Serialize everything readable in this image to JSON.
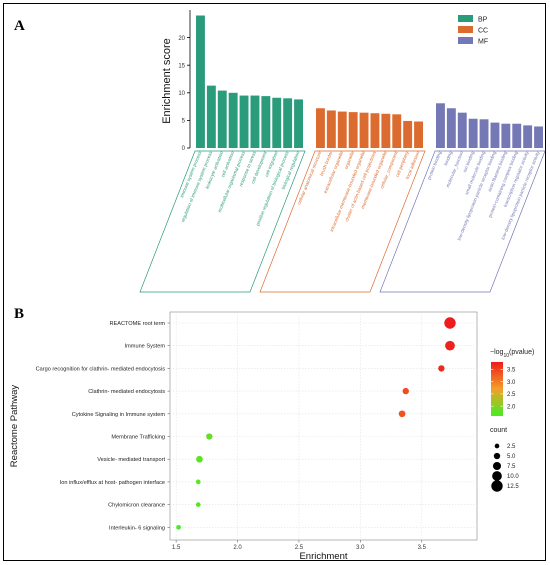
{
  "figure": {
    "panel_a_label": "A",
    "panel_b_label": "B"
  },
  "chart_data": [
    {
      "type": "bar",
      "ylabel": "Enrichment score",
      "ylim": [
        0,
        25
      ],
      "yticks": [
        0,
        5,
        10,
        15,
        20
      ],
      "legend": {
        "placement": "top-right",
        "entries": [
          {
            "name": "BP",
            "color": "#2a9b7b"
          },
          {
            "name": "CC",
            "color": "#dc6b2f"
          },
          {
            "name": "MF",
            "color": "#7479b5"
          }
        ]
      },
      "groups": [
        {
          "name": "BP",
          "color": "#2a9b7b",
          "categories": [
            "immune system process",
            "regulation of immune system process",
            "leukocyte activation",
            "cell activation",
            "multicellular organismal process",
            "response to stress",
            "cell development",
            "cell migration",
            "positive regulation of biological process",
            "biological regulation"
          ],
          "values": [
            24,
            11.3,
            10.4,
            10.0,
            9.5,
            9.5,
            9.4,
            9.1,
            9.0,
            8.8
          ]
        },
        {
          "name": "CC",
          "color": "#dc6b2f",
          "categories": [
            "cellular anatomical structure",
            "brush border",
            "extracellular organelle",
            "organelle",
            "intracellular membrane-bounded organelle",
            "cluster of actin-based cell projections",
            "membrane-bounded organelle",
            "cellular_component",
            "cell periphery",
            "focal adhesion"
          ],
          "values": [
            7.2,
            6.8,
            6.6,
            6.5,
            6.4,
            6.3,
            6.2,
            6.1,
            4.9,
            4.8
          ]
        },
        {
          "name": "MF",
          "color": "#7479b5",
          "categories": [
            "protein binding",
            "binding",
            "molecular_function",
            "ion binding",
            "small molecule binding",
            "low-density lipoprotein particle receptor binding",
            "actin filament binding",
            "protein-containing complex binding",
            "transcription regulator activity",
            "low-density lipoprotein particle receptor activity"
          ],
          "values": [
            8.1,
            7.2,
            6.4,
            5.3,
            5.2,
            4.6,
            4.4,
            4.4,
            4.1,
            3.9
          ]
        }
      ]
    },
    {
      "type": "scatter",
      "xlabel": "Enrichment",
      "ylabel": "Reactome Pathway",
      "xlim": [
        1.45,
        3.95
      ],
      "xticks": [
        1.5,
        2.0,
        2.5,
        3.0,
        3.5
      ],
      "xtick_labels": [
        "1.5",
        "2.0",
        "2.5",
        "3.0",
        "3.5"
      ],
      "grid": true,
      "color_legend": {
        "title_prefix": "−log",
        "title_sub": "10",
        "title_suffix": "(pvalue)",
        "min": 1.6,
        "max": 3.8,
        "ticks": [
          2.0,
          2.5,
          3.0,
          3.5
        ],
        "tick_labels": [
          "2.0",
          "2.5",
          "3.0",
          "3.5"
        ],
        "low_color": "#44ee22",
        "high_color": "#ee1c1c"
      },
      "size_legend": {
        "title": "count",
        "values": [
          2.5,
          5.0,
          7.5,
          10.0,
          12.5
        ],
        "labels": [
          "2.5",
          "5.0",
          "7.5",
          "10.0",
          "12.5"
        ]
      },
      "points": [
        {
          "pathway": "REACTOME root term",
          "enrichment": 3.73,
          "pvalue_log": 3.8,
          "count": 12.5
        },
        {
          "pathway": "Immune System",
          "enrichment": 3.73,
          "pvalue_log": 3.75,
          "count": 10.0
        },
        {
          "pathway": "Cargo recognition for clathrin- mediated endocytosis",
          "enrichment": 3.66,
          "pvalue_log": 3.7,
          "count": 5.0
        },
        {
          "pathway": "Clathrin- mediated endocytosis",
          "enrichment": 3.37,
          "pvalue_log": 3.4,
          "count": 5.0
        },
        {
          "pathway": "Cytokine Signaling in Immune system",
          "enrichment": 3.34,
          "pvalue_log": 3.35,
          "count": 5.5
        },
        {
          "pathway": "Membrane Trafficking",
          "enrichment": 1.77,
          "pvalue_log": 1.8,
          "count": 5.0
        },
        {
          "pathway": "Vesicle- mediated transport",
          "enrichment": 1.69,
          "pvalue_log": 1.75,
          "count": 5.5
        },
        {
          "pathway": "Ion influx/efflux at host- pathogen interface",
          "enrichment": 1.68,
          "pvalue_log": 1.7,
          "count": 2.5
        },
        {
          "pathway": "Chylomicron clearance",
          "enrichment": 1.68,
          "pvalue_log": 1.7,
          "count": 2.5
        },
        {
          "pathway": "Interleukin- 6 signaling",
          "enrichment": 1.52,
          "pvalue_log": 1.6,
          "count": 2.5
        }
      ]
    }
  ]
}
